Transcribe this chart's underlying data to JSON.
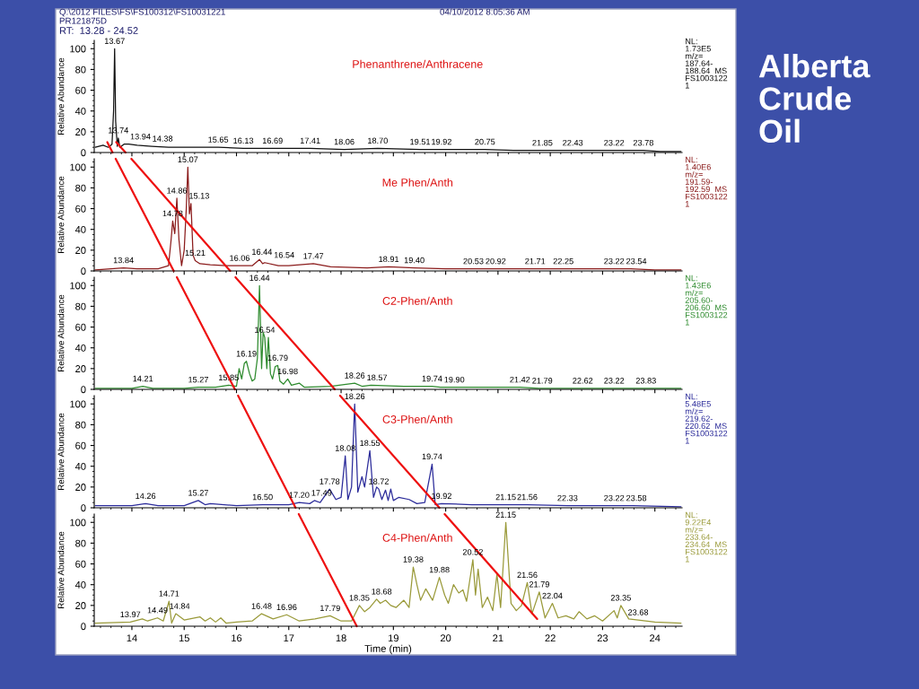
{
  "chart_data": [
    {
      "type": "line",
      "title": "Phenanthrene/Anthracene",
      "ylabel": "Relative Abundance",
      "tick_labels": "y",
      "xlim": [
        13.28,
        24.52
      ],
      "xticks": [
        14,
        15,
        16,
        17,
        18,
        19,
        20,
        21,
        22,
        23,
        24
      ],
      "ylim": [
        0,
        108
      ],
      "yticks": [
        0,
        20,
        40,
        60,
        80,
        100
      ],
      "x": [
        13.3,
        13.45,
        13.55,
        13.62,
        13.65,
        13.67,
        13.69,
        13.72,
        13.74,
        13.77,
        13.85,
        13.94,
        14.1,
        14.38,
        14.7,
        15.0,
        15.65,
        16.13,
        16.69,
        17.41,
        18.06,
        18.7,
        19.51,
        19.92,
        20.75,
        21.3,
        21.85,
        22.43,
        23.22,
        23.78,
        24.1,
        24.5
      ],
      "series": [
        {
          "color": "#111111",
          "values": [
            5,
            7,
            5,
            8,
            40,
            100,
            30,
            6,
            14,
            5,
            8,
            8,
            7,
            6,
            5,
            5,
            5,
            4,
            4,
            4,
            3,
            4,
            3,
            3,
            3,
            2,
            2,
            2,
            2,
            2,
            1,
            1
          ]
        },
        {
          "type": "line",
          "color": "#ee1111",
          "x": [
            13.53,
            13.63
          ],
          "values": [
            10,
            0
          ]
        },
        {
          "type": "line",
          "color": "#ee1111",
          "x": [
            13.7,
            13.88
          ],
          "values": [
            10,
            0
          ]
        }
      ],
      "annotations": [
        "NL:\n1.73E5\nm/z=\n187.64-\n188.64  MS\nFS1003122\n1",
        "Q:\\2012 FILES\\FS\\FS100312\\FS10031221",
        "04/10/2012 8:05:36 AM",
        "PR121875D",
        "RT:  13.28 - 24.52",
        "Alberta\nCrude\nOil",
        {
          "text": "13.67",
          "x": 13.67,
          "y": 100
        },
        {
          "text": "13.74",
          "x": 13.74,
          "y": 14
        },
        {
          "text": "13.94",
          "x": 13.94,
          "y": 8
        },
        {
          "text": "14.38",
          "x": 14.38,
          "y": 6
        },
        {
          "text": "15.65",
          "x": 15.65,
          "y": 5
        },
        {
          "text": "16.13",
          "x": 16.13,
          "y": 4
        },
        {
          "text": "16.69",
          "x": 16.69,
          "y": 4
        },
        {
          "text": "17.41",
          "x": 17.41,
          "y": 4
        },
        {
          "text": "18.06",
          "x": 18.06,
          "y": 3
        },
        {
          "text": "18.70",
          "x": 18.7,
          "y": 4
        },
        {
          "text": "19.51",
          "x": 19.51,
          "y": 3
        },
        {
          "text": "19.92",
          "x": 19.92,
          "y": 3
        },
        {
          "text": "20.75",
          "x": 20.75,
          "y": 3
        },
        {
          "text": "21.85",
          "x": 21.85,
          "y": 2
        },
        {
          "text": "22.43",
          "x": 22.43,
          "y": 2
        },
        {
          "text": "23.22",
          "x": 23.22,
          "y": 2
        },
        {
          "text": "23.78",
          "x": 23.78,
          "y": 2
        }
      ]
    },
    {
      "type": "line",
      "title": "Me Phen/Anth",
      "ylabel": "Relative Abundance",
      "tick_labels": "y",
      "xlim": [
        13.28,
        24.52
      ],
      "xticks": [
        14,
        15,
        16,
        17,
        18,
        19,
        20,
        21,
        22,
        23,
        24
      ],
      "ylim": [
        0,
        108
      ],
      "yticks": [
        0,
        20,
        40,
        60,
        80,
        100
      ],
      "x": [
        13.3,
        13.6,
        13.84,
        14.1,
        14.5,
        14.7,
        14.75,
        14.78,
        14.82,
        14.86,
        14.9,
        14.95,
        15.0,
        15.04,
        15.07,
        15.1,
        15.13,
        15.17,
        15.21,
        15.3,
        15.5,
        15.8,
        16.06,
        16.3,
        16.44,
        16.5,
        16.54,
        16.8,
        17.0,
        17.47,
        17.8,
        18.5,
        18.91,
        19.4,
        20.0,
        20.53,
        20.92,
        21.71,
        22.25,
        23.22,
        23.54,
        24.0,
        24.5
      ],
      "series": [
        {
          "color": "#8b1c1c",
          "values": [
            1,
            2,
            3,
            2,
            2,
            5,
            30,
            48,
            36,
            70,
            30,
            5,
            20,
            60,
            100,
            55,
            65,
            15,
            10,
            7,
            6,
            5,
            5,
            5,
            11,
            7,
            8,
            5,
            5,
            7,
            4,
            3,
            4,
            3,
            2,
            2,
            2,
            2,
            2,
            2,
            2,
            1,
            1
          ]
        },
        {
          "type": "line",
          "color": "#ee1111",
          "x": [
            13.69,
            14.8
          ],
          "values": [
            108,
            0
          ]
        },
        {
          "type": "line",
          "color": "#ee1111",
          "x": [
            13.99,
            15.88
          ],
          "values": [
            108,
            0
          ]
        }
      ],
      "annotations": [
        "NL:\n1.40E6\nm/z=\n191.59-\n192.59  MS\nFS1003122\n1",
        {
          "text": "13.84",
          "x": 13.84,
          "y": 3
        },
        {
          "text": "14.78",
          "x": 14.78,
          "y": 48
        },
        {
          "text": "14.86",
          "x": 14.86,
          "y": 70
        },
        {
          "text": "15.07",
          "x": 15.07,
          "y": 100
        },
        {
          "text": "15.13",
          "x": 15.13,
          "y": 65
        },
        {
          "text": "15.21",
          "x": 15.21,
          "y": 10
        },
        {
          "text": "16.06",
          "x": 16.06,
          "y": 5
        },
        {
          "text": "16.44",
          "x": 16.44,
          "y": 11
        },
        {
          "text": "16.54",
          "x": 16.54,
          "y": 8
        },
        {
          "text": "17.47",
          "x": 17.47,
          "y": 7
        },
        {
          "text": "18.91",
          "x": 18.91,
          "y": 4
        },
        {
          "text": "19.40",
          "x": 19.4,
          "y": 3
        },
        {
          "text": "20.53",
          "x": 20.53,
          "y": 2
        },
        {
          "text": "20.92",
          "x": 20.92,
          "y": 2
        },
        {
          "text": "21.71",
          "x": 21.71,
          "y": 2
        },
        {
          "text": "22.25",
          "x": 22.25,
          "y": 2
        },
        {
          "text": "23.22",
          "x": 23.22,
          "y": 2
        },
        {
          "text": "23.54",
          "x": 23.54,
          "y": 2
        }
      ]
    },
    {
      "type": "line",
      "title": "C2-Phen/Anth",
      "ylabel": "Relative Abundance",
      "tick_labels": "y",
      "xlim": [
        13.28,
        24.52
      ],
      "xticks": [
        14,
        15,
        16,
        17,
        18,
        19,
        20,
        21,
        22,
        23,
        24
      ],
      "ylim": [
        0,
        108
      ],
      "yticks": [
        0,
        20,
        40,
        60,
        80,
        100
      ],
      "x": [
        13.3,
        14.0,
        14.21,
        14.4,
        15.0,
        15.27,
        15.6,
        15.85,
        16.0,
        16.05,
        16.1,
        16.15,
        16.19,
        16.25,
        16.3,
        16.35,
        16.4,
        16.44,
        16.48,
        16.51,
        16.54,
        16.58,
        16.61,
        16.65,
        16.69,
        16.74,
        16.79,
        16.83,
        16.9,
        16.98,
        17.05,
        17.2,
        17.3,
        17.8,
        18.26,
        18.4,
        18.57,
        19.2,
        19.74,
        19.9,
        20.6,
        21.42,
        21.79,
        22.62,
        23.22,
        23.83,
        24.5
      ],
      "series": [
        {
          "color": "#2e8b2e",
          "values": [
            1,
            1,
            3,
            1,
            1,
            2,
            2,
            4,
            3,
            20,
            10,
            25,
            27,
            15,
            8,
            10,
            30,
            100,
            20,
            55,
            50,
            20,
            50,
            15,
            10,
            22,
            23,
            8,
            5,
            10,
            4,
            6,
            2,
            3,
            6,
            3,
            4,
            3,
            3,
            2,
            2,
            2,
            1,
            1,
            1,
            1,
            1
          ]
        },
        {
          "type": "line",
          "color": "#ee1111",
          "x": [
            14.86,
            15.97
          ],
          "values": [
            108,
            0
          ]
        },
        {
          "type": "line",
          "color": "#ee1111",
          "x": [
            15.98,
            17.88
          ],
          "values": [
            108,
            0
          ]
        }
      ],
      "annotations": [
        "NL:\n1.43E6\nm/z=\n205.60-\n206.60  MS\nFS1003122\n1",
        {
          "text": "14.21",
          "x": 14.21,
          "y": 3
        },
        {
          "text": "15.27",
          "x": 15.27,
          "y": 2
        },
        {
          "text": "15.85",
          "x": 15.85,
          "y": 4
        },
        {
          "text": "16.19",
          "x": 16.19,
          "y": 27
        },
        {
          "text": "16.44",
          "x": 16.44,
          "y": 100
        },
        {
          "text": "16.54",
          "x": 16.54,
          "y": 50
        },
        {
          "text": "16.79",
          "x": 16.79,
          "y": 23
        },
        {
          "text": "16.98",
          "x": 16.98,
          "y": 10
        },
        {
          "text": "18.26",
          "x": 18.26,
          "y": 6
        },
        {
          "text": "18.57",
          "x": 18.57,
          "y": 4
        },
        {
          "text": "19.74",
          "x": 19.74,
          "y": 3
        },
        {
          "text": "19.90",
          "x": 19.9,
          "y": 2
        },
        {
          "text": "21.42",
          "x": 21.42,
          "y": 2
        },
        {
          "text": "21.79",
          "x": 21.79,
          "y": 1
        },
        {
          "text": "22.62",
          "x": 22.62,
          "y": 1
        },
        {
          "text": "23.22",
          "x": 23.22,
          "y": 1
        },
        {
          "text": "23.83",
          "x": 23.83,
          "y": 1
        }
      ]
    },
    {
      "type": "line",
      "title": "C3-Phen/Anth",
      "ylabel": "Relative Abundance",
      "tick_labels": "y",
      "xlim": [
        13.28,
        24.52
      ],
      "xticks": [
        14,
        15,
        16,
        17,
        18,
        19,
        20,
        21,
        22,
        23,
        24
      ],
      "ylim": [
        0,
        108
      ],
      "yticks": [
        0,
        20,
        40,
        60,
        80,
        100
      ],
      "x": [
        13.3,
        14.0,
        14.26,
        14.5,
        15.0,
        15.27,
        15.4,
        15.5,
        16.0,
        16.5,
        17.0,
        17.2,
        17.4,
        17.49,
        17.6,
        17.78,
        17.9,
        18.0,
        18.08,
        18.13,
        18.2,
        18.26,
        18.32,
        18.4,
        18.45,
        18.55,
        18.62,
        18.68,
        18.72,
        18.78,
        18.85,
        18.9,
        18.95,
        19.0,
        19.1,
        19.3,
        19.45,
        19.6,
        19.74,
        19.8,
        19.92,
        20.5,
        21.15,
        21.56,
        22.33,
        23.22,
        23.58,
        24.5
      ],
      "series": [
        {
          "color": "#2b2b9a",
          "values": [
            2,
            2,
            4,
            2,
            2,
            7,
            3,
            4,
            2,
            3,
            3,
            5,
            4,
            7,
            5,
            18,
            8,
            10,
            50,
            8,
            20,
            100,
            15,
            30,
            20,
            55,
            10,
            20,
            18,
            8,
            17,
            7,
            18,
            7,
            10,
            8,
            4,
            5,
            42,
            3,
            4,
            3,
            3,
            3,
            2,
            2,
            2,
            1
          ]
        },
        {
          "type": "line",
          "color": "#ee1111",
          "x": [
            16.03,
            17.13
          ],
          "values": [
            108,
            0
          ]
        },
        {
          "type": "line",
          "color": "#ee1111",
          "x": [
            17.98,
            19.88
          ],
          "values": [
            108,
            0
          ]
        }
      ],
      "annotations": [
        "NL:\n5.48E5\nm/z=\n219.62-\n220.62  MS\nFS1003122\n1",
        {
          "text": "14.26",
          "x": 14.26,
          "y": 4
        },
        {
          "text": "15.27",
          "x": 15.27,
          "y": 7
        },
        {
          "text": "16.50",
          "x": 16.5,
          "y": 3
        },
        {
          "text": "17.20",
          "x": 17.2,
          "y": 5
        },
        {
          "text": "17.49",
          "x": 17.49,
          "y": 7
        },
        {
          "text": "17.78",
          "x": 17.78,
          "y": 18
        },
        {
          "text": "18.08",
          "x": 18.08,
          "y": 50
        },
        {
          "text": "18.26",
          "x": 18.26,
          "y": 100
        },
        {
          "text": "18.55",
          "x": 18.55,
          "y": 55
        },
        {
          "text": "18.72",
          "x": 18.72,
          "y": 18
        },
        {
          "text": "19.74",
          "x": 19.74,
          "y": 42
        },
        {
          "text": "19.92",
          "x": 19.92,
          "y": 4
        },
        {
          "text": "21.15",
          "x": 21.15,
          "y": 3
        },
        {
          "text": "21.56",
          "x": 21.56,
          "y": 3
        },
        {
          "text": "22.33",
          "x": 22.33,
          "y": 2
        },
        {
          "text": "23.22",
          "x": 23.22,
          "y": 2
        },
        {
          "text": "23.58",
          "x": 23.58,
          "y": 2
        }
      ]
    },
    {
      "type": "line",
      "title": "C4-Phen/Anth",
      "ylabel": "Relative Abundance",
      "xlabel": "Time (min)",
      "xlim": [
        13.28,
        24.52
      ],
      "xticks": [
        14,
        15,
        16,
        17,
        18,
        19,
        20,
        21,
        22,
        23,
        24
      ],
      "ylim": [
        0,
        108
      ],
      "yticks": [
        0,
        20,
        40,
        60,
        80,
        100
      ],
      "x": [
        13.3,
        13.97,
        14.2,
        14.3,
        14.49,
        14.6,
        14.71,
        14.76,
        14.84,
        15.0,
        15.3,
        15.4,
        15.5,
        15.6,
        15.7,
        15.8,
        16.0,
        16.3,
        16.48,
        16.7,
        16.96,
        17.2,
        17.5,
        17.79,
        18.0,
        18.2,
        18.35,
        18.45,
        18.55,
        18.68,
        18.75,
        18.85,
        18.95,
        19.05,
        19.2,
        19.3,
        19.38,
        19.45,
        19.52,
        19.62,
        19.75,
        19.88,
        19.98,
        20.05,
        20.15,
        20.25,
        20.33,
        20.4,
        20.52,
        20.57,
        20.62,
        20.7,
        20.8,
        20.9,
        20.98,
        21.05,
        21.15,
        21.25,
        21.35,
        21.45,
        21.56,
        21.65,
        21.79,
        21.9,
        22.04,
        22.15,
        22.3,
        22.45,
        22.55,
        22.7,
        22.85,
        23.0,
        23.22,
        23.28,
        23.35,
        23.5,
        23.68,
        24.0,
        24.5
      ],
      "series": [
        {
          "color": "#9a9a3a",
          "values": [
            3,
            4,
            7,
            5,
            8,
            5,
            24,
            3,
            12,
            6,
            9,
            5,
            8,
            4,
            8,
            3,
            4,
            5,
            12,
            7,
            11,
            5,
            7,
            10,
            5,
            5,
            20,
            14,
            18,
            26,
            22,
            25,
            20,
            18,
            25,
            18,
            57,
            40,
            25,
            36,
            25,
            47,
            30,
            22,
            40,
            32,
            35,
            24,
            64,
            30,
            55,
            18,
            28,
            15,
            50,
            18,
            100,
            22,
            15,
            20,
            42,
            12,
            33,
            8,
            22,
            8,
            10,
            7,
            14,
            7,
            10,
            5,
            15,
            8,
            20,
            7,
            6,
            4,
            3
          ]
        },
        {
          "type": "line",
          "color": "#ee1111",
          "x": [
            17.19,
            18.3
          ],
          "values": [
            108,
            0
          ]
        },
        {
          "type": "line",
          "color": "#ee1111",
          "x": [
            19.98,
            21.75
          ],
          "values": [
            108,
            7
          ]
        }
      ],
      "annotations": [
        "NL:\n9.22E4\nm/z=\n233.64-\n234.64  MS\nFS1003122\n1",
        {
          "text": "13.97",
          "x": 13.97,
          "y": 4
        },
        {
          "text": "14.49",
          "x": 14.49,
          "y": 8
        },
        {
          "text": "14.71",
          "x": 14.71,
          "y": 24
        },
        {
          "text": "14.84",
          "x": 14.84,
          "y": 12
        },
        {
          "text": "16.48",
          "x": 16.48,
          "y": 12
        },
        {
          "text": "16.96",
          "x": 16.96,
          "y": 11
        },
        {
          "text": "17.79",
          "x": 17.79,
          "y": 10
        },
        {
          "text": "18.35",
          "x": 18.35,
          "y": 20
        },
        {
          "text": "18.68",
          "x": 18.68,
          "y": 26
        },
        {
          "text": "19.38",
          "x": 19.38,
          "y": 57
        },
        {
          "text": "19.88",
          "x": 19.88,
          "y": 47
        },
        {
          "text": "20.52",
          "x": 20.52,
          "y": 64
        },
        {
          "text": "21.15",
          "x": 21.15,
          "y": 100
        },
        {
          "text": "21.56",
          "x": 21.56,
          "y": 42
        },
        {
          "text": "21.79",
          "x": 21.79,
          "y": 33
        },
        {
          "text": "22.04",
          "x": 22.04,
          "y": 22
        },
        {
          "text": "23.35",
          "x": 23.35,
          "y": 20
        },
        {
          "text": "23.68",
          "x": 23.68,
          "y": 6
        }
      ]
    }
  ]
}
